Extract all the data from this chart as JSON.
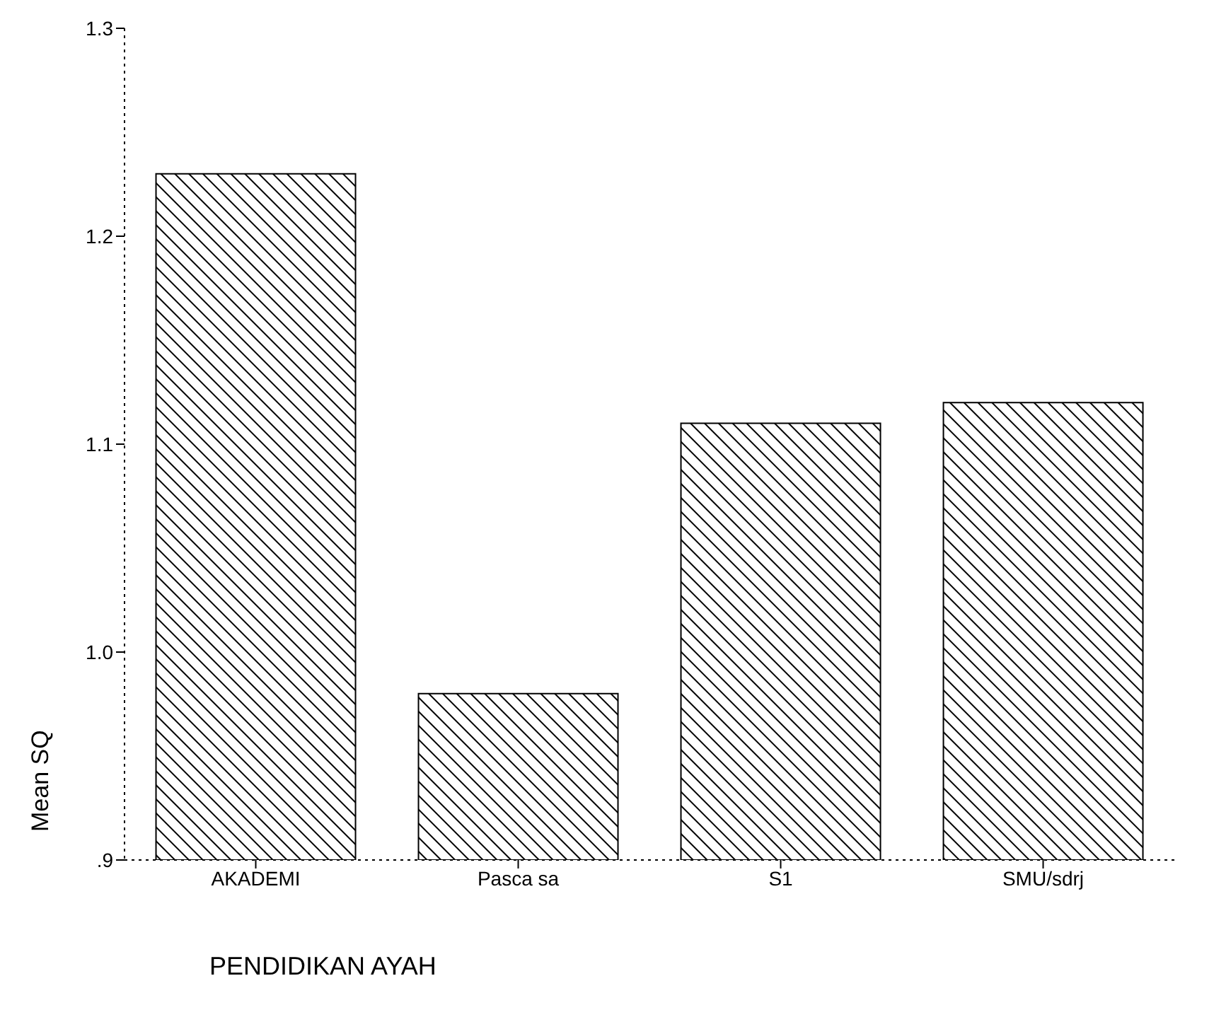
{
  "chart_data": {
    "type": "bar",
    "xlabel": "PENDIDIKAN AYAH",
    "ylabel": "Mean SQ",
    "categories": [
      "AKADEMI",
      "Pasca sa",
      "S1",
      "SMU/sdrj"
    ],
    "values": [
      1.23,
      0.98,
      1.11,
      1.12
    ],
    "color": "#000000",
    "ylim": [
      0.9,
      1.3
    ],
    "yticks": [
      {
        "value": 0.9,
        "label": ".9"
      },
      {
        "value": 1,
        "label": "1.0"
      },
      1.1,
      1.2,
      1.3
    ],
    "grid": false,
    "legend": false
  }
}
